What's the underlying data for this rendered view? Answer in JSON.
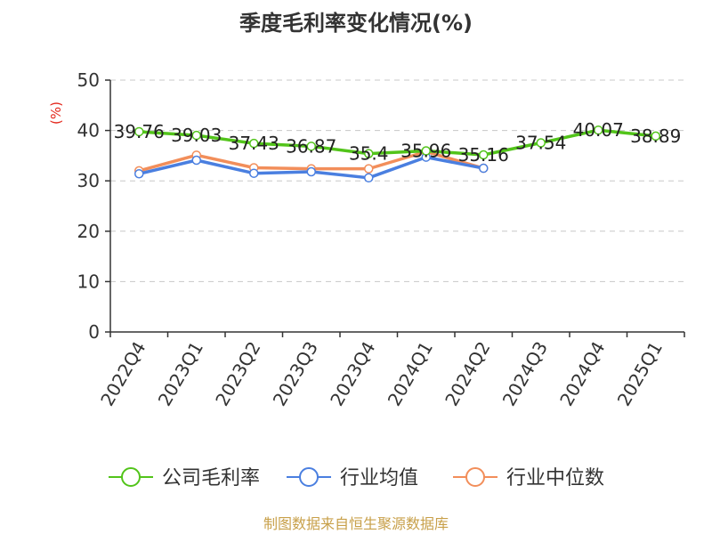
{
  "chart_data": {
    "type": "line",
    "title": "季度毛利率变化情况(%)",
    "ylabel": "(%)",
    "xlabel": "",
    "ylim": [
      0,
      50
    ],
    "yticks": [
      0,
      10,
      20,
      30,
      40,
      50
    ],
    "grid": true,
    "legend_position": "bottom",
    "categories": [
      "2022Q4",
      "2023Q1",
      "2023Q2",
      "2023Q3",
      "2023Q4",
      "2024Q1",
      "2024Q2",
      "2024Q3",
      "2024Q4",
      "2025Q1"
    ],
    "series": [
      {
        "name": "公司毛利率",
        "color": "#52c41a",
        "values": [
          39.76,
          39.03,
          37.43,
          36.87,
          35.4,
          35.96,
          35.16,
          37.54,
          40.07,
          38.89
        ],
        "labels": [
          "39.76",
          "39.03",
          "37.43",
          "36.87",
          "35.4",
          "35.96",
          "35.16",
          "37.54",
          "40.07",
          "38.89"
        ]
      },
      {
        "name": "行业均值",
        "color": "#4a7fe0",
        "values": [
          31.4,
          34.1,
          31.5,
          31.8,
          30.6,
          34.7,
          32.5,
          null,
          null,
          null
        ]
      },
      {
        "name": "行业中位数",
        "color": "#f28e5a",
        "values": [
          32.0,
          35.1,
          32.6,
          32.4,
          32.4,
          35.8,
          32.5,
          null,
          null,
          null
        ]
      }
    ],
    "source": "制图数据来自恒生聚源数据库"
  }
}
